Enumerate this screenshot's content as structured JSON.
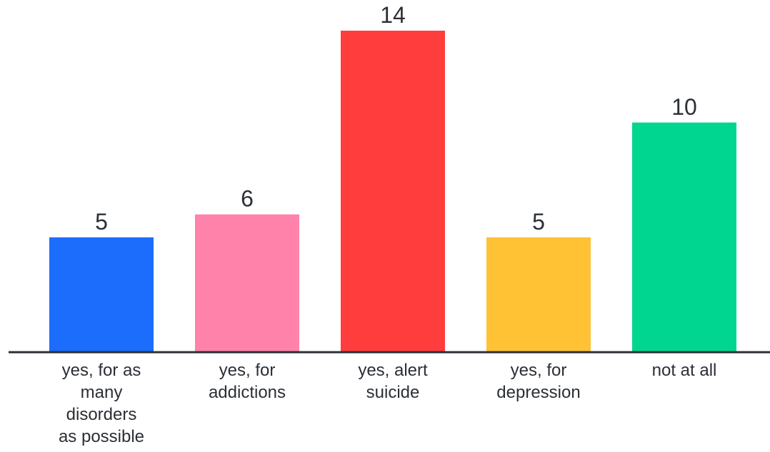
{
  "chart_data": {
    "type": "bar",
    "title": "",
    "xlabel": "",
    "ylabel": "",
    "ylim": [
      0,
      14
    ],
    "grid": false,
    "legend": "none",
    "categories": [
      "yes, for as many disorders as possible",
      "yes, for addictions",
      "yes, alert suicide",
      "yes, for depression",
      "not at all"
    ],
    "category_label_lines": [
      [
        "yes, for as",
        "many",
        "disorders",
        "as possible"
      ],
      [
        "yes, for",
        "addictions"
      ],
      [
        "yes, alert",
        "suicide"
      ],
      [
        "yes, for",
        "depression"
      ],
      [
        "not at all"
      ]
    ],
    "values": [
      5,
      6,
      14,
      5,
      10
    ],
    "data_labels": [
      "5",
      "6",
      "14",
      "5",
      "10"
    ],
    "colors": [
      "#1c6dfc",
      "#ff82ab",
      "#ff3d3d",
      "#fec234",
      "#00d68f"
    ],
    "axis_color": "#2b2f36"
  }
}
